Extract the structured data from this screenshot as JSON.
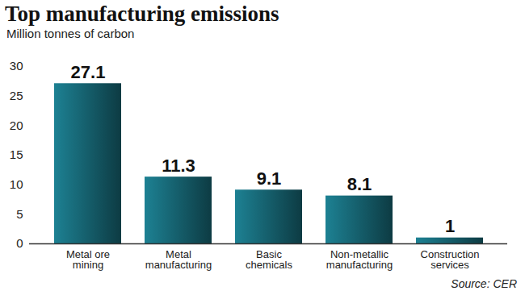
{
  "chart_data": {
    "type": "bar",
    "title": "Top manufacturing emissions",
    "subtitle": "Million tonnes of carbon",
    "categories": [
      "Metal ore mining",
      "Metal manufacturing",
      "Basic chemicals",
      "Non-metallic manufacturing",
      "Construction services"
    ],
    "values": [
      27.1,
      11.3,
      9.1,
      8.1,
      1
    ],
    "color": "#1d8193",
    "ylim": [
      0,
      30
    ],
    "yticks": [
      0,
      5,
      10,
      15,
      20,
      25,
      30
    ],
    "grid": false,
    "data_labels": true,
    "source": "Source: CER"
  }
}
